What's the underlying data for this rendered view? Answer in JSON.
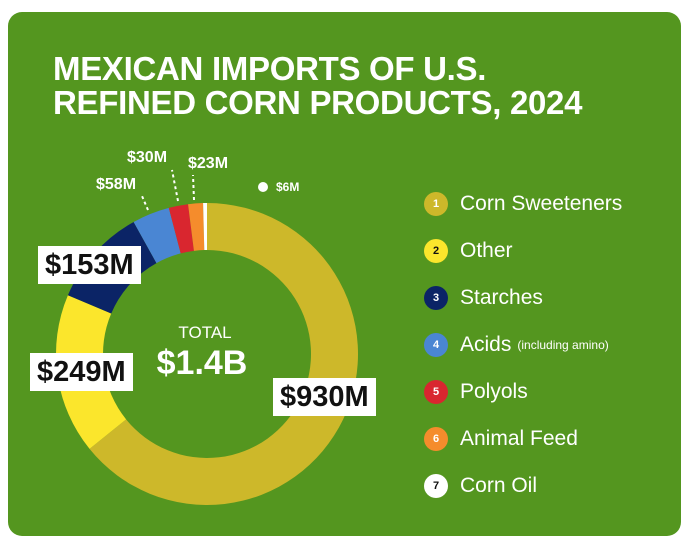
{
  "chart_data": {
    "type": "pie",
    "title": "MEXICAN IMPORTS OF U.S. REFINED CORN PRODUCTS, 2024",
    "title_lines": [
      "MEXICAN IMPORTS OF U.S.",
      "REFINED CORN PRODUCTS, 2024"
    ],
    "center_label": "TOTAL",
    "center_value": "$1.4B",
    "unit": "USD millions",
    "slices": [
      {
        "num": "1",
        "name": "Corn Sweeteners",
        "sub": "",
        "value": 930,
        "label": "$930M",
        "color": "#cdb82a",
        "numColor": "#ffffff"
      },
      {
        "num": "2",
        "name": "Other",
        "sub": "",
        "value": 249,
        "label": "$249M",
        "color": "#fbe62c",
        "numColor": "#111111"
      },
      {
        "num": "3",
        "name": "Starches",
        "sub": "",
        "value": 153,
        "label": "$153M",
        "color": "#0b2466",
        "numColor": "#ffffff"
      },
      {
        "num": "4",
        "name": "Acids",
        "sub": "(including amino)",
        "value": 58,
        "label": "$58M",
        "color": "#4a86d3",
        "numColor": "#ffffff"
      },
      {
        "num": "5",
        "name": "Polyols",
        "sub": "",
        "value": 30,
        "label": "$30M",
        "color": "#d9262f",
        "numColor": "#ffffff"
      },
      {
        "num": "6",
        "name": "Animal Feed",
        "sub": "",
        "value": 23,
        "label": "$23M",
        "color": "#f58c2c",
        "numColor": "#ffffff"
      },
      {
        "num": "7",
        "name": "Corn Oil",
        "sub": "",
        "value": 6,
        "label": "$6M",
        "color": "#ffffff",
        "numColor": "#111111"
      }
    ],
    "legend_position": "right"
  }
}
